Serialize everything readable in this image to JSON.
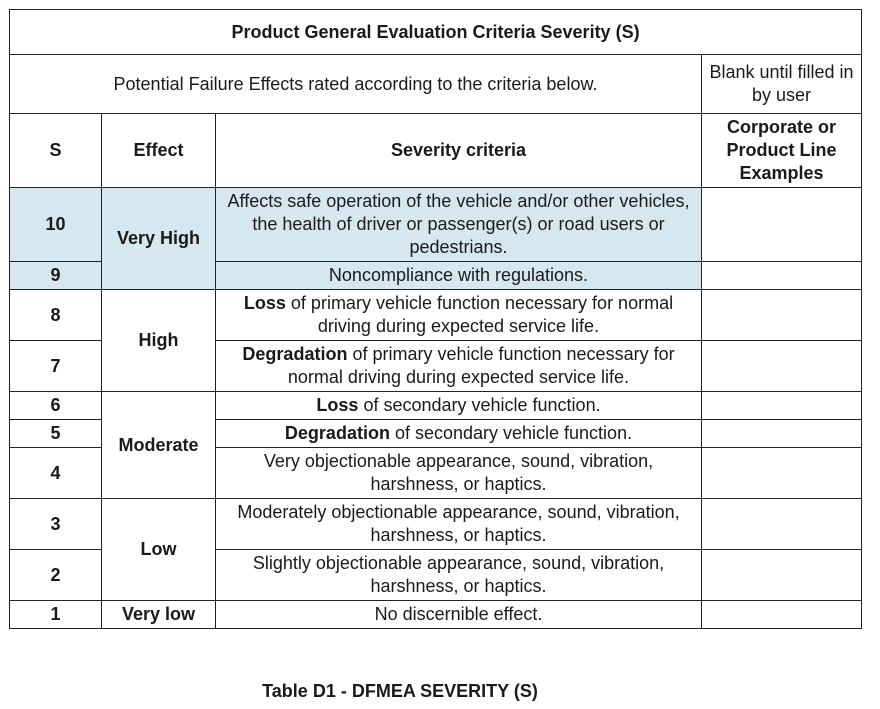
{
  "table": {
    "title": "Product General Evaluation Criteria Severity (S)",
    "intro": "Potential Failure Effects rated according to the criteria below.",
    "blank_note": "Blank until filled in by user",
    "headers": {
      "s": "S",
      "effect": "Effect",
      "criteria": "Severity criteria",
      "examples": "Corporate or Product Line Examples"
    },
    "effects": {
      "very_high": "Very High",
      "high": "High",
      "moderate": "Moderate",
      "low": "Low",
      "very_low": "Very low"
    },
    "rows": [
      {
        "s": "10",
        "criteria": "Affects safe operation of the vehicle and/or other vehicles, the health of driver or passenger(s) or road users or pedestrians."
      },
      {
        "s": "9",
        "criteria": "Noncompliance with regulations."
      },
      {
        "s": "8",
        "keyword": "Loss",
        "criteria": " of primary vehicle function necessary for normal driving during expected service life."
      },
      {
        "s": "7",
        "keyword": "Degradation",
        "criteria": " of primary vehicle function necessary for normal driving during expected service life."
      },
      {
        "s": "6",
        "keyword": "Loss",
        "criteria": " of secondary vehicle function."
      },
      {
        "s": "5",
        "keyword": "Degradation",
        "criteria": " of secondary vehicle function."
      },
      {
        "s": "4",
        "criteria": "Very objectionable appearance, sound, vibration, harshness, or haptics."
      },
      {
        "s": "3",
        "criteria": "Moderately objectionable appearance, sound, vibration, harshness, or haptics."
      },
      {
        "s": "2",
        "criteria": "Slightly objectionable appearance, sound, vibration, harshness, or haptics."
      },
      {
        "s": "1",
        "criteria": "No discernible effect."
      }
    ],
    "highlight_color": "#d6e7ef"
  },
  "caption": "Table D1 - DFMEA SEVERITY (S)"
}
